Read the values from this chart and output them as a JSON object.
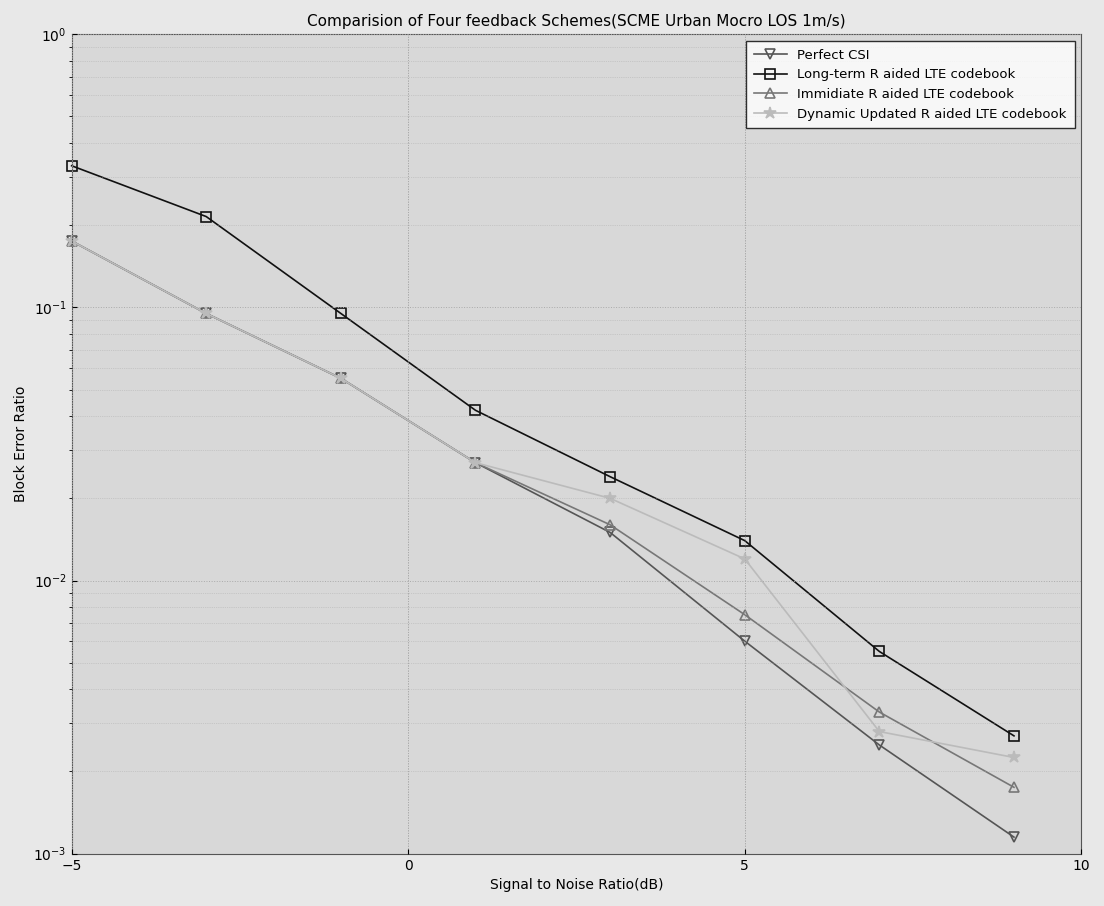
{
  "title": "Comparision of Four feedback Schemes(SCME Urban Mocro LOS 1m/s)",
  "xlabel": "Signal to Noise Ratio(dB)",
  "ylabel": "Block Error Ratio",
  "xlim": [
    -5,
    10
  ],
  "ylim": [
    0.001,
    1.0
  ],
  "series": [
    {
      "label": "Perfect CSI",
      "color": "#555555",
      "marker": "v",
      "markersize": 7,
      "linewidth": 1.2,
      "linestyle": "-",
      "x": [
        -5,
        -3,
        -1,
        1,
        3,
        5,
        7,
        9
      ],
      "y": [
        0.175,
        0.095,
        0.055,
        0.027,
        0.015,
        0.006,
        0.0025,
        0.00115
      ]
    },
    {
      "label": "Long-term R aided LTE codebook",
      "color": "#111111",
      "marker": "s",
      "markersize": 7,
      "linewidth": 1.2,
      "linestyle": "-",
      "x": [
        -5,
        -3,
        -1,
        1,
        3,
        5,
        7,
        9
      ],
      "y": [
        0.33,
        0.215,
        0.095,
        0.042,
        0.024,
        0.014,
        0.0055,
        0.0027
      ]
    },
    {
      "label": "Immidiate R aided LTE codebook",
      "color": "#777777",
      "marker": "^",
      "markersize": 7,
      "linewidth": 1.2,
      "linestyle": "-",
      "x": [
        -5,
        -3,
        -1,
        1,
        3,
        5,
        7,
        9
      ],
      "y": [
        0.175,
        0.095,
        0.055,
        0.027,
        0.016,
        0.0075,
        0.0033,
        0.00175
      ]
    },
    {
      "label": "Dynamic Updated R aided LTE codebook",
      "color": "#bbbbbb",
      "marker": "*",
      "markersize": 9,
      "linewidth": 1.2,
      "linestyle": "-",
      "x": [
        -5,
        -3,
        -1,
        1,
        3,
        5,
        7,
        9
      ],
      "y": [
        0.175,
        0.095,
        0.055,
        0.027,
        0.02,
        0.012,
        0.0028,
        0.00225
      ]
    }
  ],
  "grid_color": "#aaaaaa",
  "bg_color": "#e8e8e8",
  "axes_bg_color": "#d8d8d8",
  "legend_loc": "upper right",
  "title_fontsize": 11,
  "label_fontsize": 10,
  "tick_fontsize": 10
}
